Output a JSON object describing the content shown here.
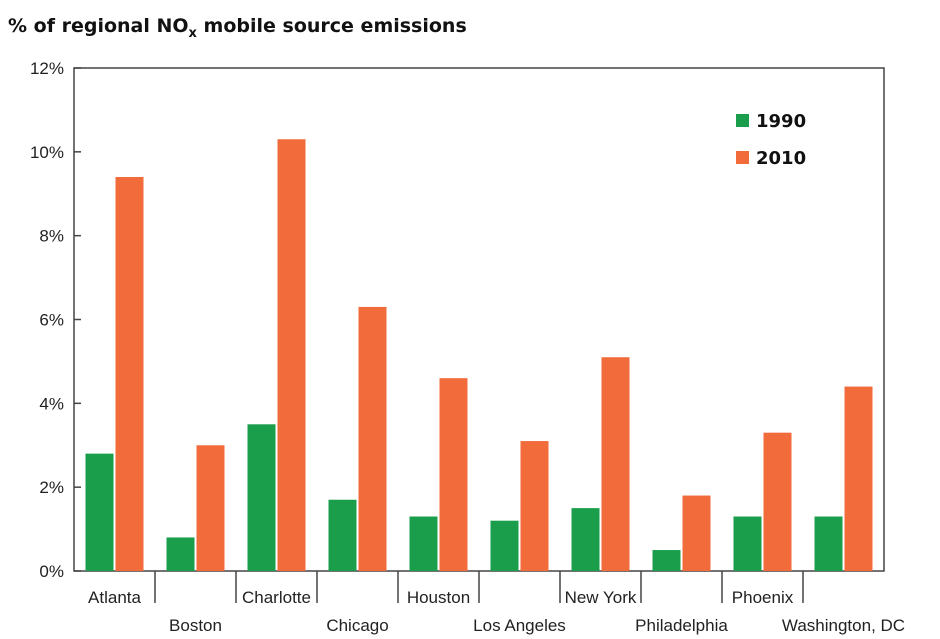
{
  "chart_data": {
    "type": "bar",
    "title": "% of regional NO",
    "title_subscript": "x",
    "title_suffix": " mobile source emissions",
    "categories": [
      "Atlanta",
      "Boston",
      "Charlotte",
      "Chicago",
      "Houston",
      "Los Angeles",
      "New York",
      "Philadelphia",
      "Phoenix",
      "Washington, DC"
    ],
    "series": [
      {
        "name": "1990",
        "color": "#1a9e4b",
        "values": [
          2.8,
          0.8,
          3.5,
          1.7,
          1.3,
          1.2,
          1.5,
          0.5,
          1.3,
          1.3
        ]
      },
      {
        "name": "2010",
        "color": "#f26b3a",
        "values": [
          9.4,
          3.0,
          10.3,
          6.3,
          4.6,
          3.1,
          5.1,
          1.8,
          3.3,
          4.4
        ]
      }
    ],
    "ylim": [
      0,
      12
    ],
    "yticks": [
      "0%",
      "2%",
      "4%",
      "6%",
      "8%",
      "10%",
      "12%"
    ],
    "xlabel": "",
    "ylabel": "",
    "legend_position": "top-right",
    "grid": false
  }
}
